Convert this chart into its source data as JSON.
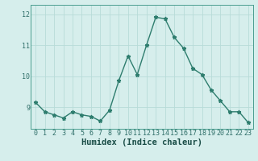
{
  "x": [
    0,
    1,
    2,
    3,
    4,
    5,
    6,
    7,
    8,
    9,
    10,
    11,
    12,
    13,
    14,
    15,
    16,
    17,
    18,
    19,
    20,
    21,
    22,
    23
  ],
  "y": [
    9.15,
    8.85,
    8.75,
    8.65,
    8.85,
    8.75,
    8.7,
    8.55,
    8.9,
    9.85,
    10.65,
    10.05,
    11.0,
    11.9,
    11.85,
    11.25,
    10.9,
    10.25,
    10.05,
    9.55,
    9.2,
    8.85,
    8.85,
    8.5
  ],
  "line_color": "#2e7d6e",
  "marker": "*",
  "marker_size": 3.5,
  "xlabel": "Humidex (Indice chaleur)",
  "xlabel_fontsize": 7.5,
  "xlim": [
    -0.5,
    23.5
  ],
  "ylim": [
    8.3,
    12.3
  ],
  "yticks": [
    9,
    10,
    11,
    12
  ],
  "xticks": [
    0,
    1,
    2,
    3,
    4,
    5,
    6,
    7,
    8,
    9,
    10,
    11,
    12,
    13,
    14,
    15,
    16,
    17,
    18,
    19,
    20,
    21,
    22,
    23
  ],
  "background_color": "#d6eeec",
  "grid_color": "#b8dbd8",
  "tick_fontsize": 6.0,
  "line_width": 1.0
}
